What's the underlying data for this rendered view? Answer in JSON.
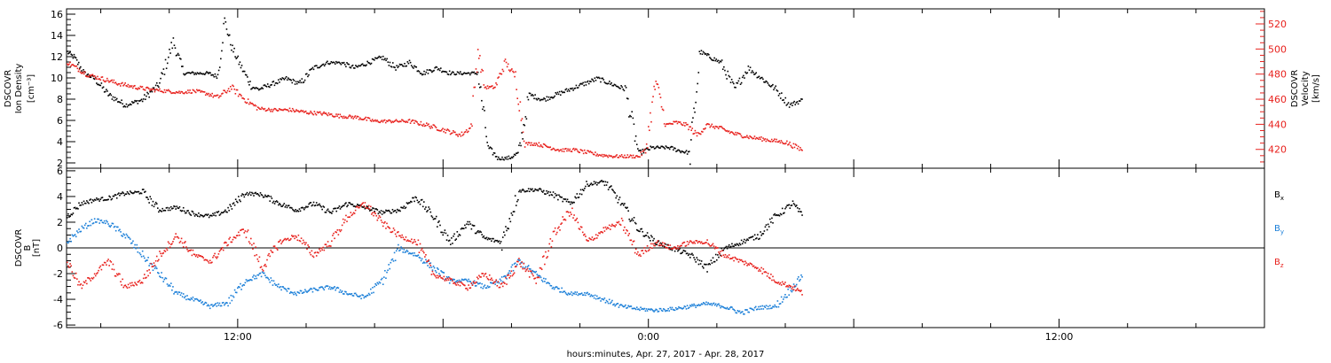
{
  "colors": {
    "black": "#000000",
    "red": "#e8211d",
    "blue": "#1b7fd8"
  },
  "xlabel": "hours:minutes, Apr. 27, 2017 - Apr. 28, 2017",
  "x_tick_labels": [
    "12:00",
    "0:00",
    "12:00"
  ],
  "chart_data": [
    {
      "type": "scatter",
      "panel": "top",
      "ylabel_left": [
        "DSCOVR",
        "Ion Density",
        "[cm⁻³]"
      ],
      "ylabel_right": [
        "DSCOVR",
        "Velocity",
        "[km/s]"
      ],
      "ylim_left": [
        1.5,
        16.5
      ],
      "ylim_right": [
        405,
        532
      ],
      "yticks_left": [
        2,
        4,
        6,
        8,
        10,
        12,
        14,
        16
      ],
      "yticks_right": [
        420,
        440,
        460,
        480,
        500,
        520
      ],
      "xlim_hours": [
        -17.0,
        18.0
      ],
      "series": [
        {
          "axis": "left",
          "color": "black",
          "x_hours": [
            -17.0,
            -16.8,
            -16.5,
            -16.2,
            -15.8,
            -15.3,
            -14.8,
            -14.3,
            -13.9,
            -13.6,
            -13.2,
            -12.9,
            -12.6,
            -12.4,
            -12.2,
            -11.9,
            -11.6,
            -11.4,
            -11.0,
            -10.6,
            -10.2,
            -9.8,
            -9.4,
            -9.0,
            -8.6,
            -8.2,
            -7.8,
            -7.4,
            -7.0,
            -6.6,
            -6.2,
            -5.8,
            -5.4,
            -5.0,
            -4.7,
            -4.4,
            -4.1,
            -3.8,
            -3.5,
            -3.1,
            -2.7,
            -2.3,
            -1.9,
            -1.5,
            -1.1,
            -0.7,
            -0.3,
            0.1,
            0.3,
            0.6,
            0.9,
            1.2,
            1.5,
            1.8,
            2.1,
            2.5,
            2.9,
            3.3,
            3.7,
            4.1,
            4.5
          ],
          "values": [
            12.5,
            12.0,
            10.5,
            10.0,
            8.5,
            7.5,
            8.0,
            9.5,
            13.5,
            10.5,
            10.5,
            10.5,
            10.2,
            15.5,
            13.0,
            11.0,
            9.2,
            9.0,
            9.5,
            10.0,
            9.5,
            11.0,
            11.5,
            11.5,
            11.0,
            11.5,
            12.0,
            11.0,
            11.5,
            10.5,
            11.0,
            10.5,
            10.5,
            10.5,
            3.5,
            2.5,
            2.5,
            3.0,
            8.5,
            8.0,
            8.5,
            9.0,
            9.5,
            10.0,
            9.5,
            9.0,
            3.0,
            3.5,
            3.5,
            3.5,
            3.2,
            3.0,
            12.5,
            12.0,
            11.5,
            9.0,
            11.0,
            10.0,
            9.0,
            7.5,
            8.0
          ]
        },
        {
          "axis": "right",
          "color": "red",
          "x_hours": [
            -17.0,
            -16.7,
            -16.4,
            -16.0,
            -15.5,
            -15.0,
            -14.5,
            -14.1,
            -13.7,
            -13.3,
            -12.9,
            -12.6,
            -12.2,
            -11.8,
            -11.4,
            -11.0,
            -10.5,
            -10.0,
            -9.5,
            -9.0,
            -8.5,
            -8.0,
            -7.5,
            -7.0,
            -6.5,
            -6.0,
            -5.5,
            -5.2,
            -5.0,
            -4.8,
            -4.5,
            -4.2,
            -3.9,
            -3.6,
            -3.3,
            -3.0,
            -2.6,
            -2.2,
            -1.8,
            -1.4,
            -1.0,
            -0.6,
            -0.3,
            -0.1,
            0.2,
            0.5,
            0.8,
            1.1,
            1.4,
            1.7,
            2.0,
            2.5,
            3.0,
            3.5,
            4.0,
            4.5
          ],
          "values": [
            490,
            485,
            480,
            477,
            473,
            470,
            468,
            467,
            466,
            467,
            465,
            462,
            470,
            460,
            453,
            452,
            452,
            450,
            449,
            447,
            446,
            443,
            443,
            443,
            440,
            436,
            432,
            438,
            500,
            470,
            470,
            490,
            478,
            425,
            425,
            423,
            420,
            420,
            418,
            416,
            415,
            415,
            415,
            420,
            475,
            440,
            442,
            440,
            432,
            440,
            438,
            433,
            430,
            428,
            426,
            420
          ]
        }
      ]
    },
    {
      "type": "scatter",
      "panel": "bottom",
      "ylabel_left": [
        "DSCOVR",
        "B",
        "[nT]"
      ],
      "ylim": [
        -6.2,
        6.2
      ],
      "yticks": [
        -6,
        -4,
        -2,
        0,
        2,
        4,
        6
      ],
      "xlim_hours": [
        -17.0,
        18.0
      ],
      "series": [
        {
          "name": "Bx",
          "legend_main": "B",
          "legend_sub": "x",
          "color": "black",
          "x_hours": [
            -17.0,
            -16.6,
            -16.2,
            -15.8,
            -15.3,
            -14.8,
            -14.3,
            -13.8,
            -13.3,
            -12.8,
            -12.3,
            -11.8,
            -11.3,
            -10.8,
            -10.3,
            -9.8,
            -9.3,
            -8.8,
            -8.3,
            -7.8,
            -7.3,
            -6.8,
            -6.3,
            -5.8,
            -5.3,
            -4.8,
            -4.3,
            -3.8,
            -3.3,
            -2.8,
            -2.3,
            -1.8,
            -1.3,
            -0.8,
            -0.3,
            0.2,
            0.7,
            1.2,
            1.7,
            2.2,
            2.7,
            3.2,
            3.7,
            4.2,
            4.5
          ],
          "values": [
            2.5,
            3.5,
            3.8,
            3.9,
            4.3,
            4.4,
            3.0,
            3.2,
            2.7,
            2.5,
            3.0,
            4.3,
            4.2,
            3.5,
            3.0,
            3.5,
            2.8,
            3.5,
            3.2,
            2.8,
            3.0,
            4.0,
            2.5,
            0.5,
            2.0,
            0.8,
            0.5,
            4.5,
            4.6,
            4.2,
            3.5,
            5.0,
            5.2,
            3.5,
            1.5,
            0.5,
            0.0,
            -0.5,
            -1.5,
            0.0,
            0.5,
            1.0,
            2.5,
            3.5,
            2.5
          ]
        },
        {
          "name": "By",
          "legend_main": "B",
          "legend_sub": "y",
          "color": "blue",
          "x_hours": [
            -17.0,
            -16.6,
            -16.2,
            -15.8,
            -15.3,
            -14.8,
            -14.3,
            -13.8,
            -13.3,
            -12.8,
            -12.3,
            -11.8,
            -11.3,
            -10.8,
            -10.3,
            -9.8,
            -9.3,
            -8.8,
            -8.3,
            -7.8,
            -7.3,
            -6.8,
            -6.3,
            -5.8,
            -5.3,
            -4.8,
            -4.3,
            -3.8,
            -3.3,
            -2.8,
            -2.3,
            -1.8,
            -1.3,
            -0.8,
            -0.3,
            0.2,
            0.7,
            1.2,
            1.7,
            2.2,
            2.7,
            3.2,
            3.7,
            4.2,
            4.5
          ],
          "values": [
            0.5,
            1.5,
            2.2,
            2.0,
            1.0,
            -0.5,
            -2.0,
            -3.5,
            -4.0,
            -4.5,
            -4.2,
            -2.5,
            -2.0,
            -3.0,
            -3.5,
            -3.2,
            -3.0,
            -3.5,
            -3.8,
            -2.5,
            0.0,
            -0.5,
            -1.5,
            -2.5,
            -2.5,
            -3.0,
            -2.5,
            -1.0,
            -2.0,
            -3.0,
            -3.5,
            -3.5,
            -4.0,
            -4.5,
            -4.7,
            -4.8,
            -4.7,
            -4.5,
            -4.3,
            -4.5,
            -5.0,
            -4.6,
            -4.5,
            -3.0,
            -2.0
          ]
        },
        {
          "name": "Bz",
          "legend_main": "B",
          "legend_sub": "z",
          "color": "red",
          "x_hours": [
            -17.0,
            -16.6,
            -16.2,
            -15.8,
            -15.3,
            -14.8,
            -14.3,
            -13.8,
            -13.3,
            -12.8,
            -12.3,
            -11.8,
            -11.3,
            -10.8,
            -10.3,
            -9.8,
            -9.3,
            -8.8,
            -8.3,
            -7.8,
            -7.3,
            -6.8,
            -6.3,
            -5.8,
            -5.3,
            -4.8,
            -4.3,
            -3.8,
            -3.3,
            -2.8,
            -2.3,
            -1.8,
            -1.3,
            -0.8,
            -0.3,
            0.2,
            0.7,
            1.2,
            1.7,
            2.2,
            2.7,
            3.2,
            3.7,
            4.2,
            4.5
          ],
          "values": [
            -1.0,
            -3.0,
            -2.0,
            -1.0,
            -3.0,
            -2.5,
            -0.5,
            1.0,
            -0.5,
            -1.0,
            0.5,
            1.5,
            -1.5,
            0.5,
            1.0,
            -0.5,
            0.5,
            2.5,
            3.5,
            2.0,
            1.0,
            0.5,
            -2.0,
            -2.5,
            -3.0,
            -2.0,
            -3.0,
            -1.0,
            -2.5,
            1.0,
            3.0,
            0.5,
            1.5,
            2.0,
            -0.5,
            0.5,
            0.0,
            0.5,
            0.5,
            -0.5,
            -1.0,
            -1.5,
            -2.5,
            -3.0,
            -3.5
          ]
        }
      ]
    }
  ]
}
